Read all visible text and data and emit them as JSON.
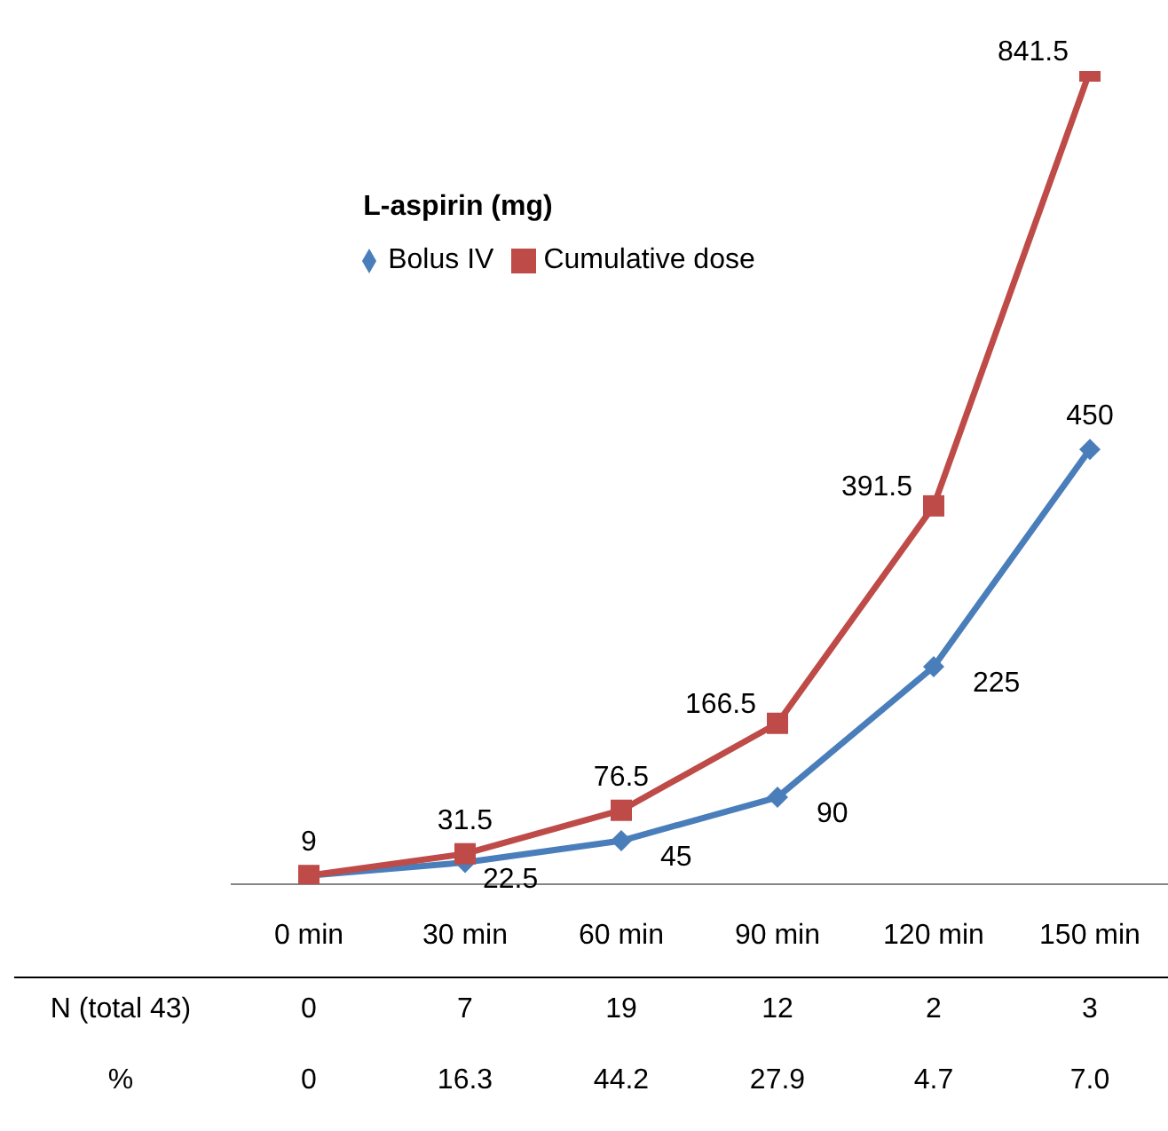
{
  "chart_data": {
    "type": "line",
    "title": "L-aspirin (mg)",
    "categories": [
      "0 min",
      "30 min",
      "60 min",
      "90 min",
      "120 min",
      "150 min"
    ],
    "series": [
      {
        "name": "Bolus IV",
        "color": "#4a7ebb",
        "marker": "diamond",
        "values": [
          9,
          22.5,
          45,
          90,
          225,
          450
        ],
        "value_labels": [
          null,
          "22.5",
          "45",
          "90",
          "225",
          "450"
        ]
      },
      {
        "name": "Cumulative dose",
        "color": "#be4b48",
        "marker": "square",
        "values": [
          9,
          31.5,
          76.5,
          166.5,
          391.5,
          841.5
        ],
        "value_labels": [
          "9",
          "31.5",
          "76.5",
          "166.5",
          "391.5",
          "841.5"
        ]
      }
    ],
    "annotations": [
      "N (total 43)",
      "0",
      "7",
      "19",
      "12",
      "2",
      "3",
      "%",
      "0",
      "16.3",
      "44.2",
      "27.9",
      "4.7",
      "7.0"
    ],
    "legend": "top left",
    "grid": false
  }
}
